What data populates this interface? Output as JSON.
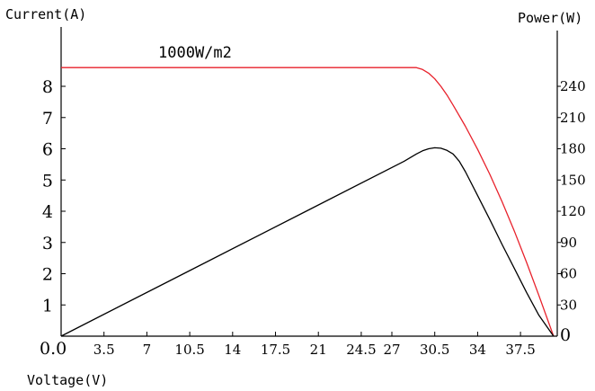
{
  "chart_data": {
    "type": "line",
    "title": "",
    "xlabel": "Voltage(V)",
    "ylabel_left": "Current(A)",
    "ylabel_right": "Power(W)",
    "annotation": "1000W/m2",
    "origin_label": "0.0",
    "right_origin_label": "0",
    "xlim": [
      0,
      40.5
    ],
    "ylim_left": [
      0,
      9.9
    ],
    "ylim_right": [
      0,
      297
    ],
    "grid": false,
    "x_ticks": [
      3.5,
      7,
      10.5,
      14,
      17.5,
      21,
      24.5,
      27,
      30.5,
      34,
      37.5
    ],
    "x_tick_labels": [
      "3.5",
      "7",
      "10.5",
      "14",
      "17.5",
      "21",
      "24.5",
      "27",
      "30.5",
      "34",
      "37.5"
    ],
    "y_ticks_left": [
      1,
      2,
      3,
      4,
      5,
      6,
      7,
      8
    ],
    "y_tick_labels_left": [
      "1",
      "2",
      "3",
      "4",
      "5",
      "6",
      "7",
      "8"
    ],
    "y_ticks_right": [
      30,
      60,
      90,
      120,
      150,
      180,
      210,
      240
    ],
    "y_tick_labels_right": [
      "30",
      "60",
      "90",
      "120",
      "150",
      "180",
      "210",
      "240"
    ],
    "series": [
      {
        "axis": "left",
        "color": "#e8212b",
        "x": [
          0,
          29,
          29.5,
          30.0,
          30.5,
          31.0,
          31.5,
          32.0,
          33.0,
          34.0,
          35.0,
          36.0,
          37.0,
          38.0,
          39.0,
          40.2
        ],
        "y": [
          8.6,
          8.6,
          8.54,
          8.42,
          8.24,
          8.0,
          7.72,
          7.4,
          6.72,
          5.98,
          5.18,
          4.3,
          3.36,
          2.36,
          1.3,
          0
        ]
      },
      {
        "axis": "right",
        "color": "#000000",
        "x": [
          0,
          10,
          20,
          28,
          29,
          29.5,
          30,
          30.5,
          31,
          31.5,
          32,
          32.5,
          33,
          34,
          35,
          36,
          37,
          38,
          39,
          40.2
        ],
        "y": [
          0,
          60,
          120,
          168,
          175,
          178,
          180,
          181,
          180.5,
          178.5,
          175,
          168,
          158,
          135,
          112,
          88,
          65,
          42,
          20,
          0
        ]
      }
    ]
  }
}
